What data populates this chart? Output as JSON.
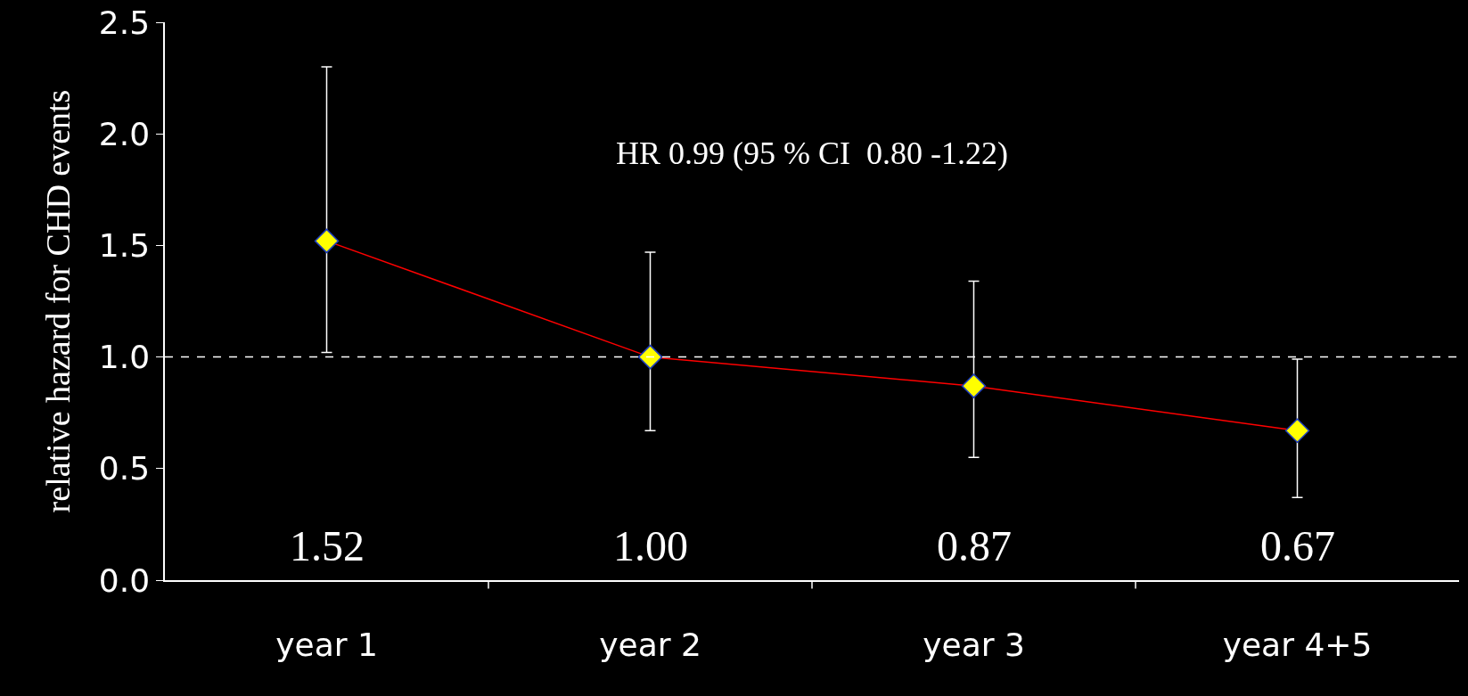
{
  "chart_data": {
    "type": "line",
    "ylabel": "relative hazard for CHD events",
    "categories": [
      "year 1",
      "year 2",
      "year 3",
      "year 4+5"
    ],
    "series": [
      {
        "color": "#ff0000",
        "colors": [
          "#ffff00",
          "#ffff00",
          "#ffff00",
          "#ffff00"
        ],
        "values": [
          1.52,
          1.0,
          0.87,
          0.67
        ],
        "errors": [
          [
            1.02,
            2.3
          ],
          [
            0.67,
            1.47
          ],
          [
            0.55,
            1.34
          ],
          [
            0.37,
            0.99
          ]
        ]
      }
    ],
    "value_labels": [
      "1.52",
      "1.00",
      "0.87",
      "0.67"
    ],
    "marker": "diamond",
    "ylim": [
      0,
      2.5
    ],
    "yticks": [
      {
        "value": 0,
        "label": "0.0"
      },
      {
        "value": 0.5,
        "label": "0.5"
      },
      {
        "value": 1,
        "label": "1.0"
      },
      {
        "value": 1.5,
        "label": "1.5"
      },
      {
        "value": 2,
        "label": "2.0"
      },
      {
        "value": 2.5,
        "label": "2.5"
      }
    ],
    "ref_lines": [
      {
        "axis": "y",
        "value": 1,
        "color": "#ffffff",
        "line_style": "dashed"
      }
    ],
    "annotations": [
      "HR 0.99 (95 % CI  0.80 -1.22)"
    ]
  }
}
